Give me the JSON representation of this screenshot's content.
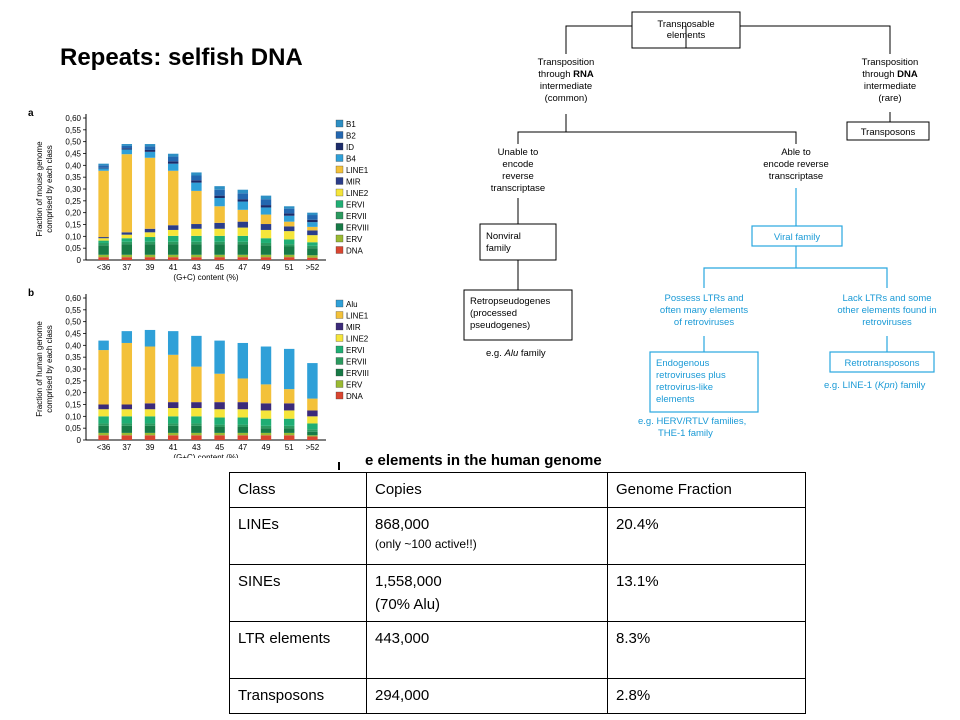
{
  "slide": {
    "title": "Repeats: selfish DNA",
    "table_caption": "e elements in the human genome"
  },
  "chart_data": [
    {
      "type": "bar",
      "panel_label": "a",
      "ylabel": "Fraction of mouse genome comprised by each class",
      "xlabel": "(G+C) content (%)",
      "categories": [
        "<36",
        "37",
        "39",
        "41",
        "43",
        "45",
        "47",
        "49",
        "51",
        ">52"
      ],
      "yticks": [
        "0",
        "0,05",
        "0,10",
        "0,15",
        "0,20",
        "0,25",
        "0,30",
        "0,35",
        "0,40",
        "0,45",
        "0,50",
        "0,55",
        "0,60"
      ],
      "ylim": [
        0,
        0.6
      ],
      "series": [
        {
          "name": "DNA",
          "color": "#d94530",
          "values": [
            0.012,
            0.012,
            0.012,
            0.012,
            0.012,
            0.012,
            0.012,
            0.012,
            0.012,
            0.01
          ]
        },
        {
          "name": "ERV",
          "color": "#9aba32",
          "values": [
            0.01,
            0.01,
            0.01,
            0.01,
            0.01,
            0.01,
            0.01,
            0.01,
            0.01,
            0.01
          ]
        },
        {
          "name": "ERVIII",
          "color": "#177a46",
          "values": [
            0.04,
            0.045,
            0.045,
            0.045,
            0.045,
            0.045,
            0.045,
            0.04,
            0.035,
            0.03
          ]
        },
        {
          "name": "ERVII",
          "color": "#2b9a5f",
          "values": [
            0.01,
            0.01,
            0.01,
            0.01,
            0.01,
            0.01,
            0.01,
            0.01,
            0.01,
            0.01
          ]
        },
        {
          "name": "ERVI",
          "color": "#1fae74",
          "values": [
            0.01,
            0.015,
            0.02,
            0.025,
            0.025,
            0.025,
            0.025,
            0.02,
            0.02,
            0.015
          ]
        },
        {
          "name": "LINE2",
          "color": "#f5e53a",
          "values": [
            0.01,
            0.015,
            0.02,
            0.025,
            0.03,
            0.03,
            0.035,
            0.035,
            0.035,
            0.03
          ]
        },
        {
          "name": "MIR",
          "color": "#2b3d8a",
          "values": [
            0.005,
            0.01,
            0.015,
            0.02,
            0.02,
            0.025,
            0.025,
            0.025,
            0.02,
            0.02
          ]
        },
        {
          "name": "LINE1",
          "color": "#f3c13a",
          "values": [
            0.28,
            0.33,
            0.3,
            0.23,
            0.14,
            0.07,
            0.05,
            0.04,
            0.02,
            0.015
          ]
        },
        {
          "name": "B4",
          "color": "#2fa0d8",
          "values": [
            0.01,
            0.02,
            0.025,
            0.03,
            0.035,
            0.035,
            0.035,
            0.03,
            0.025,
            0.02
          ]
        },
        {
          "name": "ID",
          "color": "#1c2b6a",
          "values": [
            0.003,
            0.005,
            0.008,
            0.01,
            0.01,
            0.01,
            0.01,
            0.01,
            0.01,
            0.01
          ]
        },
        {
          "name": "B2",
          "color": "#2367b0",
          "values": [
            0.01,
            0.01,
            0.015,
            0.02,
            0.02,
            0.025,
            0.025,
            0.025,
            0.02,
            0.02
          ]
        },
        {
          "name": "B1",
          "color": "#2d8fc4",
          "values": [
            0.007,
            0.008,
            0.01,
            0.012,
            0.013,
            0.015,
            0.015,
            0.015,
            0.01,
            0.01
          ]
        }
      ]
    },
    {
      "type": "bar",
      "panel_label": "b",
      "ylabel": "Fraction of human genome comprised by each class",
      "xlabel": "(G+C) content (%)",
      "categories": [
        "<36",
        "37",
        "39",
        "41",
        "43",
        "45",
        "47",
        "49",
        "51",
        ">52"
      ],
      "yticks": [
        "0",
        "0,05",
        "0,10",
        "0,15",
        "0,20",
        "0,25",
        "0,30",
        "0,35",
        "0,40",
        "0,45",
        "0,50",
        "0,55",
        "0,60"
      ],
      "ylim": [
        0,
        0.6
      ],
      "series": [
        {
          "name": "DNA",
          "color": "#d94530",
          "values": [
            0.02,
            0.02,
            0.02,
            0.02,
            0.02,
            0.02,
            0.02,
            0.02,
            0.02,
            0.015
          ]
        },
        {
          "name": "ERV",
          "color": "#9aba32",
          "values": [
            0.01,
            0.01,
            0.01,
            0.01,
            0.01,
            0.01,
            0.01,
            0.01,
            0.01,
            0.005
          ]
        },
        {
          "name": "ERVIII",
          "color": "#177a46",
          "values": [
            0.03,
            0.03,
            0.03,
            0.03,
            0.03,
            0.025,
            0.025,
            0.02,
            0.02,
            0.015
          ]
        },
        {
          "name": "ERVII",
          "color": "#2b9a5f",
          "values": [
            0.01,
            0.01,
            0.01,
            0.01,
            0.01,
            0.01,
            0.01,
            0.01,
            0.01,
            0.01
          ]
        },
        {
          "name": "ERVI",
          "color": "#1fae74",
          "values": [
            0.03,
            0.03,
            0.03,
            0.03,
            0.03,
            0.03,
            0.03,
            0.03,
            0.03,
            0.025
          ]
        },
        {
          "name": "LINE2",
          "color": "#f5e53a",
          "values": [
            0.03,
            0.03,
            0.03,
            0.035,
            0.035,
            0.035,
            0.035,
            0.035,
            0.035,
            0.03
          ]
        },
        {
          "name": "MIR",
          "color": "#3b2a7a",
          "values": [
            0.02,
            0.02,
            0.025,
            0.025,
            0.025,
            0.03,
            0.03,
            0.03,
            0.03,
            0.025
          ]
        },
        {
          "name": "LINE1",
          "color": "#f3c13a",
          "values": [
            0.23,
            0.26,
            0.24,
            0.2,
            0.15,
            0.12,
            0.1,
            0.08,
            0.06,
            0.05
          ]
        },
        {
          "name": "Alu",
          "color": "#2fa0d8",
          "values": [
            0.04,
            0.05,
            0.07,
            0.1,
            0.13,
            0.14,
            0.15,
            0.16,
            0.17,
            0.15
          ]
        }
      ]
    }
  ],
  "diagram": {
    "root": "Transposable elements",
    "rna_branch": "Transposition through RNA intermediate (common)",
    "dna_branch": "Transposition through DNA intermediate (rare)",
    "transposons": "Transposons",
    "unable": "Unable to encode reverse transcriptase",
    "able": "Able to encode reverse transcriptase",
    "nonviral": "Nonviral family",
    "viral": "Viral family",
    "retropseudogenes": "Retropseudogenes (processed pseudogenes)",
    "alu_example": "e.g. Alu family",
    "ltr": "Possess LTRs and often many elements of retroviruses",
    "noltr": "Lack LTRs and some other elements found in retroviruses",
    "endogenous": "Endogenous retroviruses plus retrovirus-like elements",
    "retrotransposons": "Retrotransposons",
    "herv_example": "e.g. HERV/RTLV families, THE-1 family",
    "line1_example": "e.g. LINE-1 (Kpn) family"
  },
  "table": {
    "headers": [
      "Class",
      "Copies",
      "Genome Fraction"
    ],
    "rows": [
      {
        "cls": "LINEs",
        "copies": "868,000",
        "note": "(only ~100 active!!)",
        "fraction": "20.4%"
      },
      {
        "cls": "SINEs",
        "copies": "1,558,000",
        "note": "(70% Alu)",
        "fraction": "13.1%"
      },
      {
        "cls": "LTR elements",
        "copies": "443,000",
        "note": "",
        "fraction": "8.3%"
      },
      {
        "cls": "Transposons",
        "copies": "294,000",
        "note": "",
        "fraction": "2.8%"
      }
    ]
  }
}
